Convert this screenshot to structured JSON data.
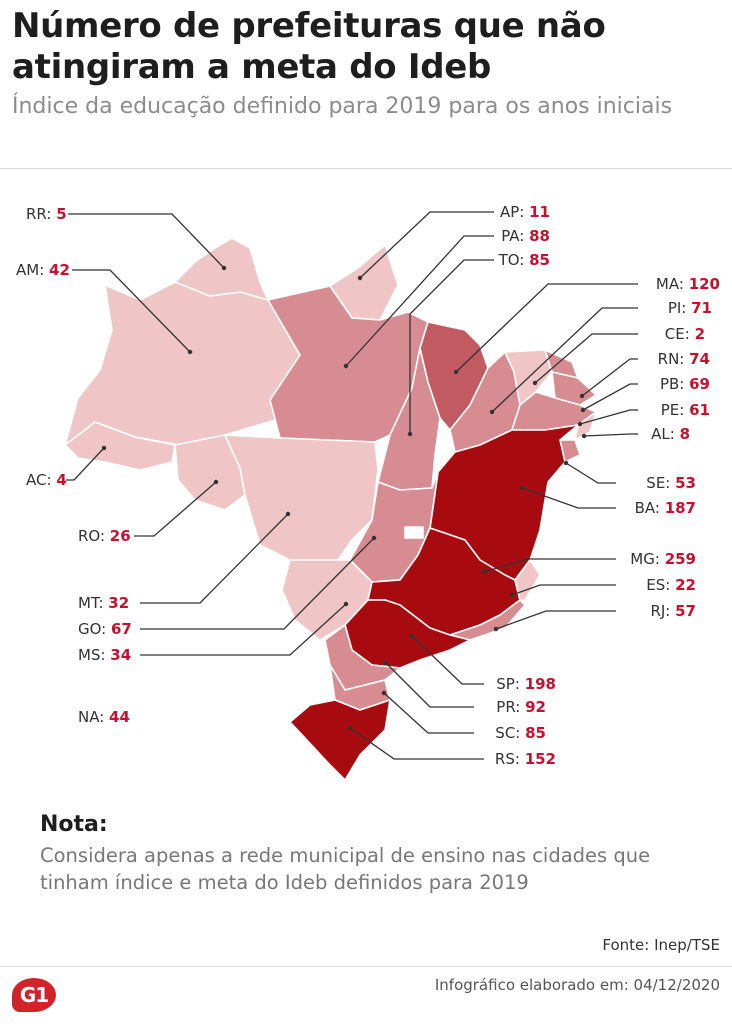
{
  "title": "Número de prefeituras que não atingiram a meta do Ideb",
  "subtitle": "Índice da educação definido para 2019 para os anos iniciais",
  "colors": {
    "low": "#efc5c6",
    "mid": "#d68c90",
    "high": "#c25a61",
    "max": "#a80b0f",
    "value": "#c8102e"
  },
  "states": [
    {
      "uf": "RR",
      "value": 5
    },
    {
      "uf": "AM",
      "value": 42
    },
    {
      "uf": "AC",
      "value": 4
    },
    {
      "uf": "RO",
      "value": 26
    },
    {
      "uf": "MT",
      "value": 32
    },
    {
      "uf": "GO",
      "value": 67
    },
    {
      "uf": "MS",
      "value": 34
    },
    {
      "uf": "NA",
      "value": 44
    },
    {
      "uf": "AP",
      "value": 11
    },
    {
      "uf": "PA",
      "value": 88
    },
    {
      "uf": "TO",
      "value": 85
    },
    {
      "uf": "MA",
      "value": 120
    },
    {
      "uf": "PI",
      "value": 71
    },
    {
      "uf": "CE",
      "value": 2
    },
    {
      "uf": "RN",
      "value": 74
    },
    {
      "uf": "PB",
      "value": 69
    },
    {
      "uf": "PE",
      "value": 61
    },
    {
      "uf": "AL",
      "value": 8
    },
    {
      "uf": "SE",
      "value": 53
    },
    {
      "uf": "BA",
      "value": 187
    },
    {
      "uf": "MG",
      "value": 259
    },
    {
      "uf": "ES",
      "value": 22
    },
    {
      "uf": "RJ",
      "value": 57
    },
    {
      "uf": "SP",
      "value": 198
    },
    {
      "uf": "PR",
      "value": 92
    },
    {
      "uf": "SC",
      "value": 85
    },
    {
      "uf": "RS",
      "value": 152
    }
  ],
  "note": {
    "title": "Nota:",
    "text": "Considera apenas a rede municipal de ensino nas cidades que tinham índice e meta do Ideb definidos para 2019"
  },
  "source": "Fonte: Inep/TSE",
  "logo": "G1",
  "credit": "Infográfico elaborado em: 04/12/2020"
}
